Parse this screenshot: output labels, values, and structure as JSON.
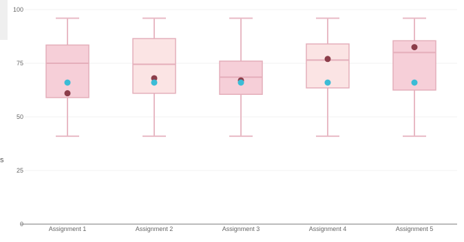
{
  "chart_data": {
    "type": "box",
    "title": "",
    "xlabel": "",
    "ylabel": "",
    "ylim": [
      0,
      100
    ],
    "yticks": [
      0,
      25,
      50,
      75,
      100
    ],
    "categories": [
      "Assignment 1",
      "Assignment 2",
      "Assignment 3",
      "Assignment 4",
      "Assignment 5"
    ],
    "boxes": [
      {
        "min": 41,
        "q1": 59,
        "median": 75,
        "q3": 83.5,
        "max": 96,
        "dark_point": 61,
        "blue_point": 66
      },
      {
        "min": 41,
        "q1": 61,
        "median": 74.5,
        "q3": 86.5,
        "max": 96,
        "dark_point": 68,
        "blue_point": 66
      },
      {
        "min": 41,
        "q1": 60.5,
        "median": 68.5,
        "q3": 76,
        "max": 96,
        "dark_point": 67,
        "blue_point": 66
      },
      {
        "min": 41,
        "q1": 63.5,
        "median": 76.5,
        "q3": 84,
        "max": 96,
        "dark_point": 77,
        "blue_point": 66
      },
      {
        "min": 41,
        "q1": 62.5,
        "median": 80,
        "q3": 85.5,
        "max": 96,
        "dark_point": 82.5,
        "blue_point": 66
      }
    ],
    "grid": true,
    "colors": {
      "box_fill_dark": "#f6cfd8",
      "box_fill_light": "#fbe4e4",
      "box_stroke": "#e4aeba",
      "whisker": "#e8b9c4",
      "dark_point": "#8c3d4a",
      "blue_point": "#3bbcd6",
      "axis": "#777777",
      "grid": "#f0f0f0",
      "tick_text": "#666666"
    }
  },
  "side_label": "s"
}
